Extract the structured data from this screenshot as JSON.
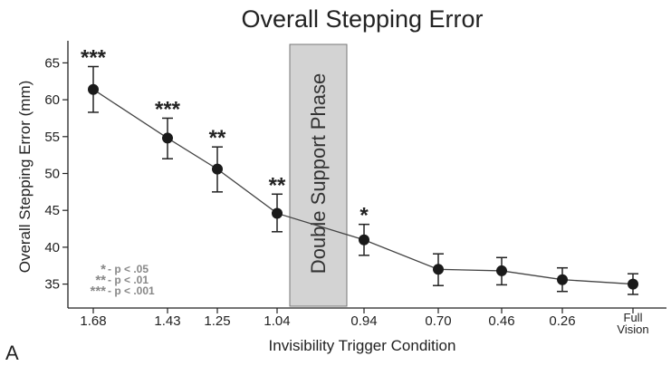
{
  "chart_data": {
    "type": "line",
    "title": "Overall Stepping Error",
    "xlabel": "Invisibility Trigger Condition",
    "ylabel": "Overall Stepping Error (mm)",
    "ylim": [
      32,
      68
    ],
    "yticks": [
      35,
      40,
      45,
      50,
      55,
      60,
      65
    ],
    "categories": [
      "1.68",
      "1.43",
      "1.25",
      "1.04",
      "0.94",
      "0.70",
      "0.46",
      "0.26",
      "Full Vision"
    ],
    "category_lines": [
      [
        "1.68"
      ],
      [
        "1.43"
      ],
      [
        "1.25"
      ],
      [
        "1.04"
      ],
      [
        "0.94"
      ],
      [
        "0.70"
      ],
      [
        "0.46"
      ],
      [
        "0.26"
      ],
      [
        "Full",
        "Vision"
      ]
    ],
    "values": [
      61.4,
      54.8,
      50.6,
      44.6,
      41.0,
      37.0,
      36.8,
      35.6,
      35.0
    ],
    "error_low": [
      58.3,
      52.0,
      47.5,
      42.1,
      38.9,
      34.8,
      34.9,
      34.0,
      33.6
    ],
    "error_high": [
      64.5,
      57.5,
      53.6,
      47.2,
      43.1,
      39.1,
      38.6,
      37.2,
      36.4
    ],
    "significance": [
      "***",
      "***",
      "**",
      "**",
      "*",
      "",
      "",
      "",
      ""
    ],
    "shaded_region": {
      "label": "Double Support Phase",
      "between": [
        "1.04",
        "0.94"
      ],
      "color": "#d3d3d3"
    },
    "legend": [
      {
        "stars": "*",
        "text": "- p < .05"
      },
      {
        "stars": "**",
        "text": "- p < .01"
      },
      {
        "stars": "***",
        "text": "- p < .001"
      }
    ],
    "panel_label": "A",
    "line_color": "#444444",
    "marker_color": "#1a1a1a",
    "legend_color": "#888888"
  }
}
